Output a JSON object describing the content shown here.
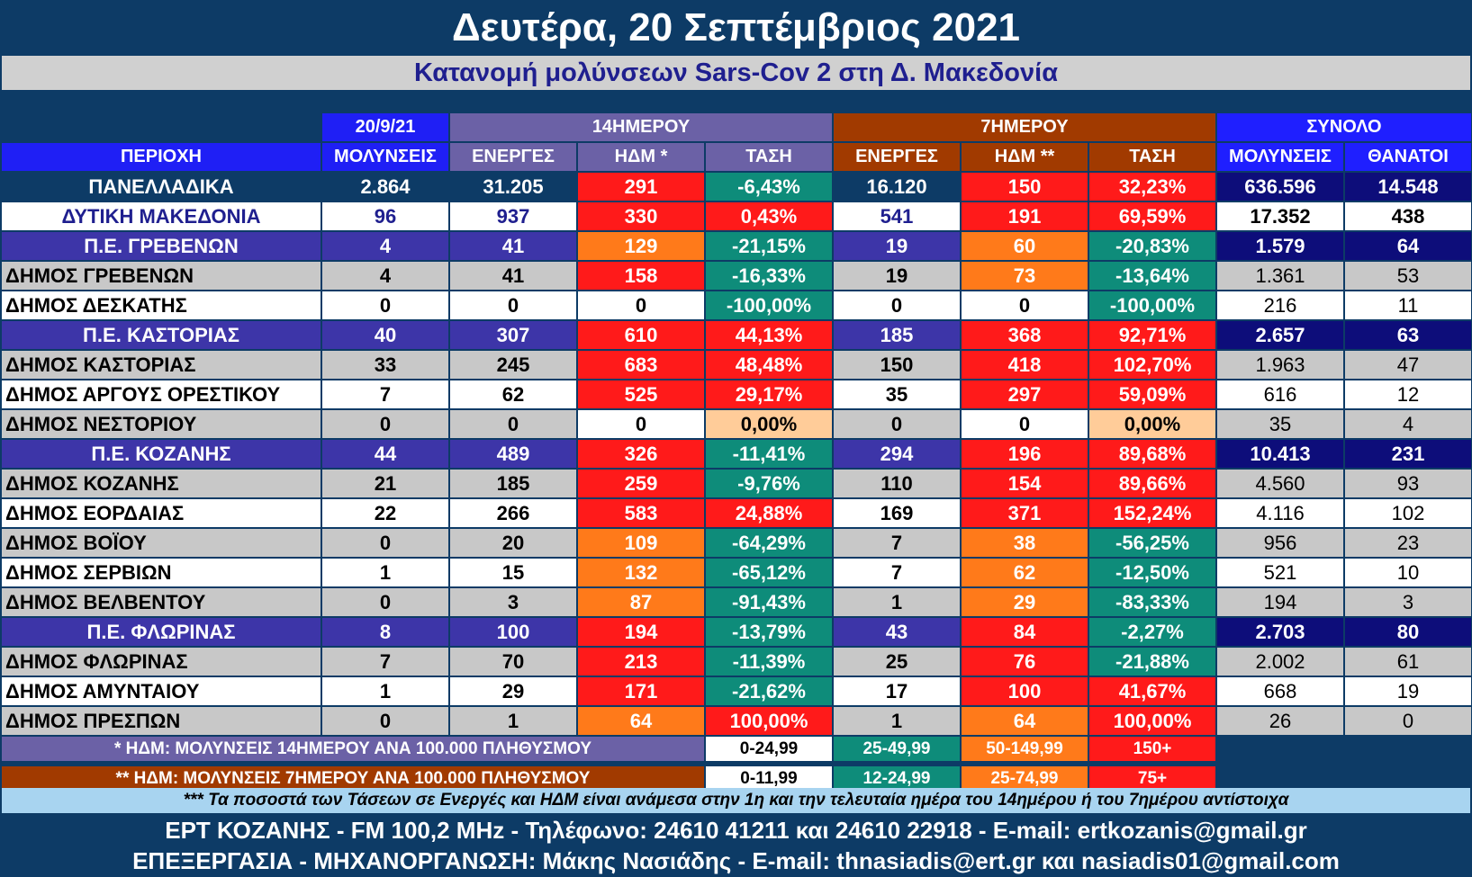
{
  "title": "Δευτέρα, 20 Σεπτέμβριος 2021",
  "subtitle": "Κατανομή μολύνσεων Sars-Cov 2 στη Δ. Μακεδονία",
  "header_top": {
    "date": "20/9/21",
    "g14": "14ΗΜΕΡΟΥ",
    "g7": "7ΗΜΕΡΟΥ",
    "total": "ΣΥΝΟΛΟ"
  },
  "header_cols": [
    "ΠΕΡΙΟΧΗ",
    "ΜΟΛΥΝΣΕΙΣ",
    "ΕΝΕΡΓΕΣ",
    "ΗΔΜ *",
    "ΤΑΣΗ",
    "ΕΝΕΡΓΕΣ",
    "ΗΔΜ **",
    "ΤΑΣΗ",
    "ΜΟΛΥΝΣΕΙΣ",
    "ΘΑΝΑΤΟΙ"
  ],
  "rows": [
    {
      "kind": "national",
      "cells": [
        "ΠΑΝΕΛΛΑΔΙΚΑ",
        "2.864",
        "31.205",
        "291",
        "-6,43%",
        "16.120",
        "150",
        "32,23%",
        "636.596",
        "14.548"
      ],
      "colors": [
        "red",
        "teal",
        "red",
        "red"
      ]
    },
    {
      "kind": "wmac",
      "cells": [
        "ΔΥΤΙΚΗ ΜΑΚΕΔΟΝΙΑ",
        "96",
        "937",
        "330",
        "0,43%",
        "541",
        "191",
        "69,59%",
        "17.352",
        "438"
      ],
      "colors": [
        "red",
        "red",
        "red",
        "red"
      ]
    },
    {
      "kind": "region",
      "cells": [
        "Π.Ε. ΓΡΕΒΕΝΩΝ",
        "4",
        "41",
        "129",
        "-21,15%",
        "19",
        "60",
        "-20,83%",
        "1.579",
        "64"
      ],
      "colors": [
        "orange",
        "teal",
        "orange",
        "teal"
      ]
    },
    {
      "kind": "gray",
      "cells": [
        "ΔΗΜΟΣ ΓΡΕΒΕΝΩΝ",
        "4",
        "41",
        "158",
        "-16,33%",
        "19",
        "73",
        "-13,64%",
        "1.361",
        "53"
      ],
      "colors": [
        "red",
        "teal",
        "orange",
        "teal"
      ]
    },
    {
      "kind": "white",
      "cells": [
        "ΔΗΜΟΣ ΔΕΣΚΑΤΗΣ",
        "0",
        "0",
        "0",
        "-100,00%",
        "0",
        "0",
        "-100,00%",
        "216",
        "11"
      ],
      "colors": [
        "white",
        "teal",
        "white",
        "teal"
      ]
    },
    {
      "kind": "region",
      "cells": [
        "Π.Ε. ΚΑΣΤΟΡΙΑΣ",
        "40",
        "307",
        "610",
        "44,13%",
        "185",
        "368",
        "92,71%",
        "2.657",
        "63"
      ],
      "colors": [
        "red",
        "red",
        "red",
        "red"
      ]
    },
    {
      "kind": "gray",
      "cells": [
        "ΔΗΜΟΣ ΚΑΣΤΟΡΙΑΣ",
        "33",
        "245",
        "683",
        "48,48%",
        "150",
        "418",
        "102,70%",
        "1.963",
        "47"
      ],
      "colors": [
        "red",
        "red",
        "red",
        "red"
      ]
    },
    {
      "kind": "white",
      "cells": [
        "ΔΗΜΟΣ ΑΡΓΟΥΣ ΟΡΕΣΤΙΚΟΥ",
        "7",
        "62",
        "525",
        "29,17%",
        "35",
        "297",
        "59,09%",
        "616",
        "12"
      ],
      "colors": [
        "red",
        "red",
        "red",
        "red"
      ]
    },
    {
      "kind": "gray",
      "cells": [
        "ΔΗΜΟΣ ΝΕΣΤΟΡΙΟΥ",
        "0",
        "0",
        "0",
        "0,00%",
        "0",
        "0",
        "0,00%",
        "35",
        "4"
      ],
      "colors": [
        "white",
        "peach",
        "white",
        "peach"
      ]
    },
    {
      "kind": "region",
      "cells": [
        "Π.Ε. ΚΟΖΑΝΗΣ",
        "44",
        "489",
        "326",
        "-11,41%",
        "294",
        "196",
        "89,68%",
        "10.413",
        "231"
      ],
      "colors": [
        "red",
        "teal",
        "red",
        "red"
      ]
    },
    {
      "kind": "gray",
      "cells": [
        "ΔΗΜΟΣ ΚΟΖΑΝΗΣ",
        "21",
        "185",
        "259",
        "-9,76%",
        "110",
        "154",
        "89,66%",
        "4.560",
        "93"
      ],
      "colors": [
        "red",
        "teal",
        "red",
        "red"
      ]
    },
    {
      "kind": "white",
      "cells": [
        "ΔΗΜΟΣ ΕΟΡΔΑΙΑΣ",
        "22",
        "266",
        "583",
        "24,88%",
        "169",
        "371",
        "152,24%",
        "4.116",
        "102"
      ],
      "colors": [
        "red",
        "red",
        "red",
        "red"
      ]
    },
    {
      "kind": "gray",
      "cells": [
        "ΔΗΜΟΣ ΒΟΪΟΥ",
        "0",
        "20",
        "109",
        "-64,29%",
        "7",
        "38",
        "-56,25%",
        "956",
        "23"
      ],
      "colors": [
        "orange",
        "teal",
        "orange",
        "teal"
      ]
    },
    {
      "kind": "white",
      "cells": [
        "ΔΗΜΟΣ ΣΕΡΒΙΩΝ",
        "1",
        "15",
        "132",
        "-65,12%",
        "7",
        "62",
        "-12,50%",
        "521",
        "10"
      ],
      "colors": [
        "orange",
        "teal",
        "orange",
        "teal"
      ]
    },
    {
      "kind": "gray",
      "cells": [
        "ΔΗΜΟΣ ΒΕΛΒΕΝΤΟΥ",
        "0",
        "3",
        "87",
        "-91,43%",
        "1",
        "29",
        "-83,33%",
        "194",
        "3"
      ],
      "colors": [
        "orange",
        "teal",
        "orange",
        "teal"
      ]
    },
    {
      "kind": "region",
      "cells": [
        "Π.Ε. ΦΛΩΡΙΝΑΣ",
        "8",
        "100",
        "194",
        "-13,79%",
        "43",
        "84",
        "-2,27%",
        "2.703",
        "80"
      ],
      "colors": [
        "red",
        "teal",
        "red",
        "teal"
      ]
    },
    {
      "kind": "gray",
      "cells": [
        "ΔΗΜΟΣ ΦΛΩΡΙΝΑΣ",
        "7",
        "70",
        "213",
        "-11,39%",
        "25",
        "76",
        "-21,88%",
        "2.002",
        "61"
      ],
      "colors": [
        "red",
        "teal",
        "red",
        "teal"
      ]
    },
    {
      "kind": "white",
      "cells": [
        "ΔΗΜΟΣ ΑΜΥΝΤΑΙΟΥ",
        "1",
        "29",
        "171",
        "-21,62%",
        "17",
        "100",
        "41,67%",
        "668",
        "19"
      ],
      "colors": [
        "red",
        "teal",
        "red",
        "red"
      ]
    },
    {
      "kind": "gray",
      "cells": [
        "ΔΗΜΟΣ ΠΡΕΣΠΩΝ",
        "0",
        "1",
        "64",
        "100,00%",
        "1",
        "64",
        "100,00%",
        "26",
        "0"
      ],
      "colors": [
        "orange",
        "red",
        "orange",
        "red"
      ]
    }
  ],
  "legend": [
    {
      "label": "* ΗΔΜ: ΜΟΛΥΝΣΕΙΣ 14ΗΜΕΡΟΥ ΑΝΑ 100.000 ΠΛΗΘΥΣΜΟΥ",
      "ranges": [
        "0-24,99",
        "25-49,99",
        "50-149,99",
        "150+"
      ]
    },
    {
      "label": "** ΗΔΜ: ΜΟΛΥΝΣΕΙΣ 7ΗΜΕΡΟΥ ΑΝΑ 100.000 ΠΛΗΘΥΣΜΟΥ",
      "ranges": [
        "0-11,99",
        "12-24,99",
        "25-74,99",
        "75+"
      ]
    }
  ],
  "note": "*** Τα ποσοστά των Τάσεων σε Ενεργές και ΗΔΜ είναι ανάμεσα στην 1η και την τελευταία ημέρα του 14ημέρου ή του 7ημέρου αντίστοιχα",
  "footer_line1": "ΕΡΤ ΚΟΖΑΝΗΣ - FM 100,2 MHz - Τηλέφωνο:  24610 41211 και 24610 22918 - E-mail: ertkozanis@gmail.gr",
  "footer_line2": "ΕΠΕΞΕΡΓΑΣΙΑ  -  ΜΗΧΑΝΟΡΓΑΝΩΣΗ: Μάκης Νασιάδης  -   E-mail: thnasiadis@ert.gr και nasiadis01@gmail.com",
  "colors": {
    "red": "#ff1a1a",
    "orange": "#ff7a1a",
    "teal": "#0e8c7a",
    "peach": "#ffcc99",
    "navy": "#0d3b66",
    "region": "#3d35a8",
    "darknavy": "#0d0d7a"
  }
}
